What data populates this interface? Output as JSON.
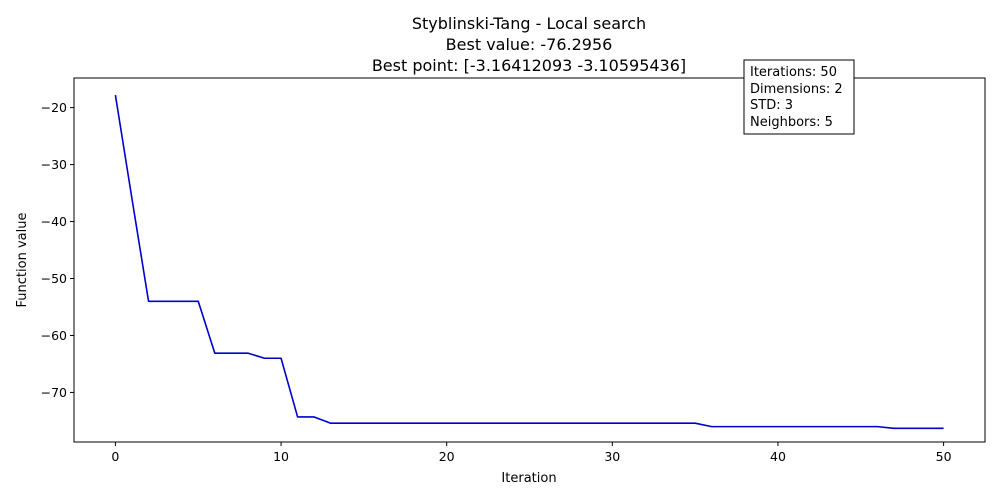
{
  "chart_data": {
    "type": "line",
    "title_lines": [
      "Styblinski-Tang - Local search",
      "Best value: -76.2956",
      "Best point: [-3.16412093 -3.10595436]"
    ],
    "xlabel": "Iteration",
    "ylabel": "Function value",
    "xlim": [
      -2.5,
      52.5
    ],
    "ylim": [
      -78.7,
      -14.8
    ],
    "xticks": [
      0,
      10,
      20,
      30,
      40,
      50
    ],
    "yticks": [
      -20,
      -30,
      -40,
      -50,
      -60,
      -70
    ],
    "grid": false,
    "series": [
      {
        "color": "#0000cc",
        "x": [
          0,
          1,
          2,
          3,
          4,
          5,
          6,
          7,
          8,
          9,
          10,
          11,
          12,
          13,
          14,
          15,
          16,
          17,
          18,
          19,
          20,
          21,
          22,
          23,
          24,
          25,
          26,
          27,
          28,
          29,
          30,
          31,
          32,
          33,
          34,
          35,
          36,
          37,
          38,
          39,
          40,
          41,
          42,
          43,
          44,
          45,
          46,
          47,
          48,
          49,
          50
        ],
        "y": [
          -17.8,
          -36.0,
          -54.0,
          -54.0,
          -54.0,
          -54.0,
          -63.1,
          -63.1,
          -63.1,
          -64.0,
          -64.0,
          -74.3,
          -74.3,
          -75.4,
          -75.4,
          -75.4,
          -75.4,
          -75.4,
          -75.4,
          -75.4,
          -75.4,
          -75.4,
          -75.4,
          -75.4,
          -75.4,
          -75.4,
          -75.4,
          -75.4,
          -75.4,
          -75.4,
          -75.4,
          -75.4,
          -75.4,
          -75.4,
          -75.4,
          -75.4,
          -76.0,
          -76.0,
          -76.0,
          -76.0,
          -76.0,
          -76.0,
          -76.0,
          -76.0,
          -76.0,
          -76.0,
          -76.0,
          -76.2956,
          -76.2956,
          -76.2956,
          -76.2956
        ]
      }
    ],
    "info_box": {
      "placement": "top-right",
      "lines": [
        "Iterations: 50",
        "Dimensions: 2",
        "STD: 3",
        "Neighbors: 5"
      ]
    }
  }
}
